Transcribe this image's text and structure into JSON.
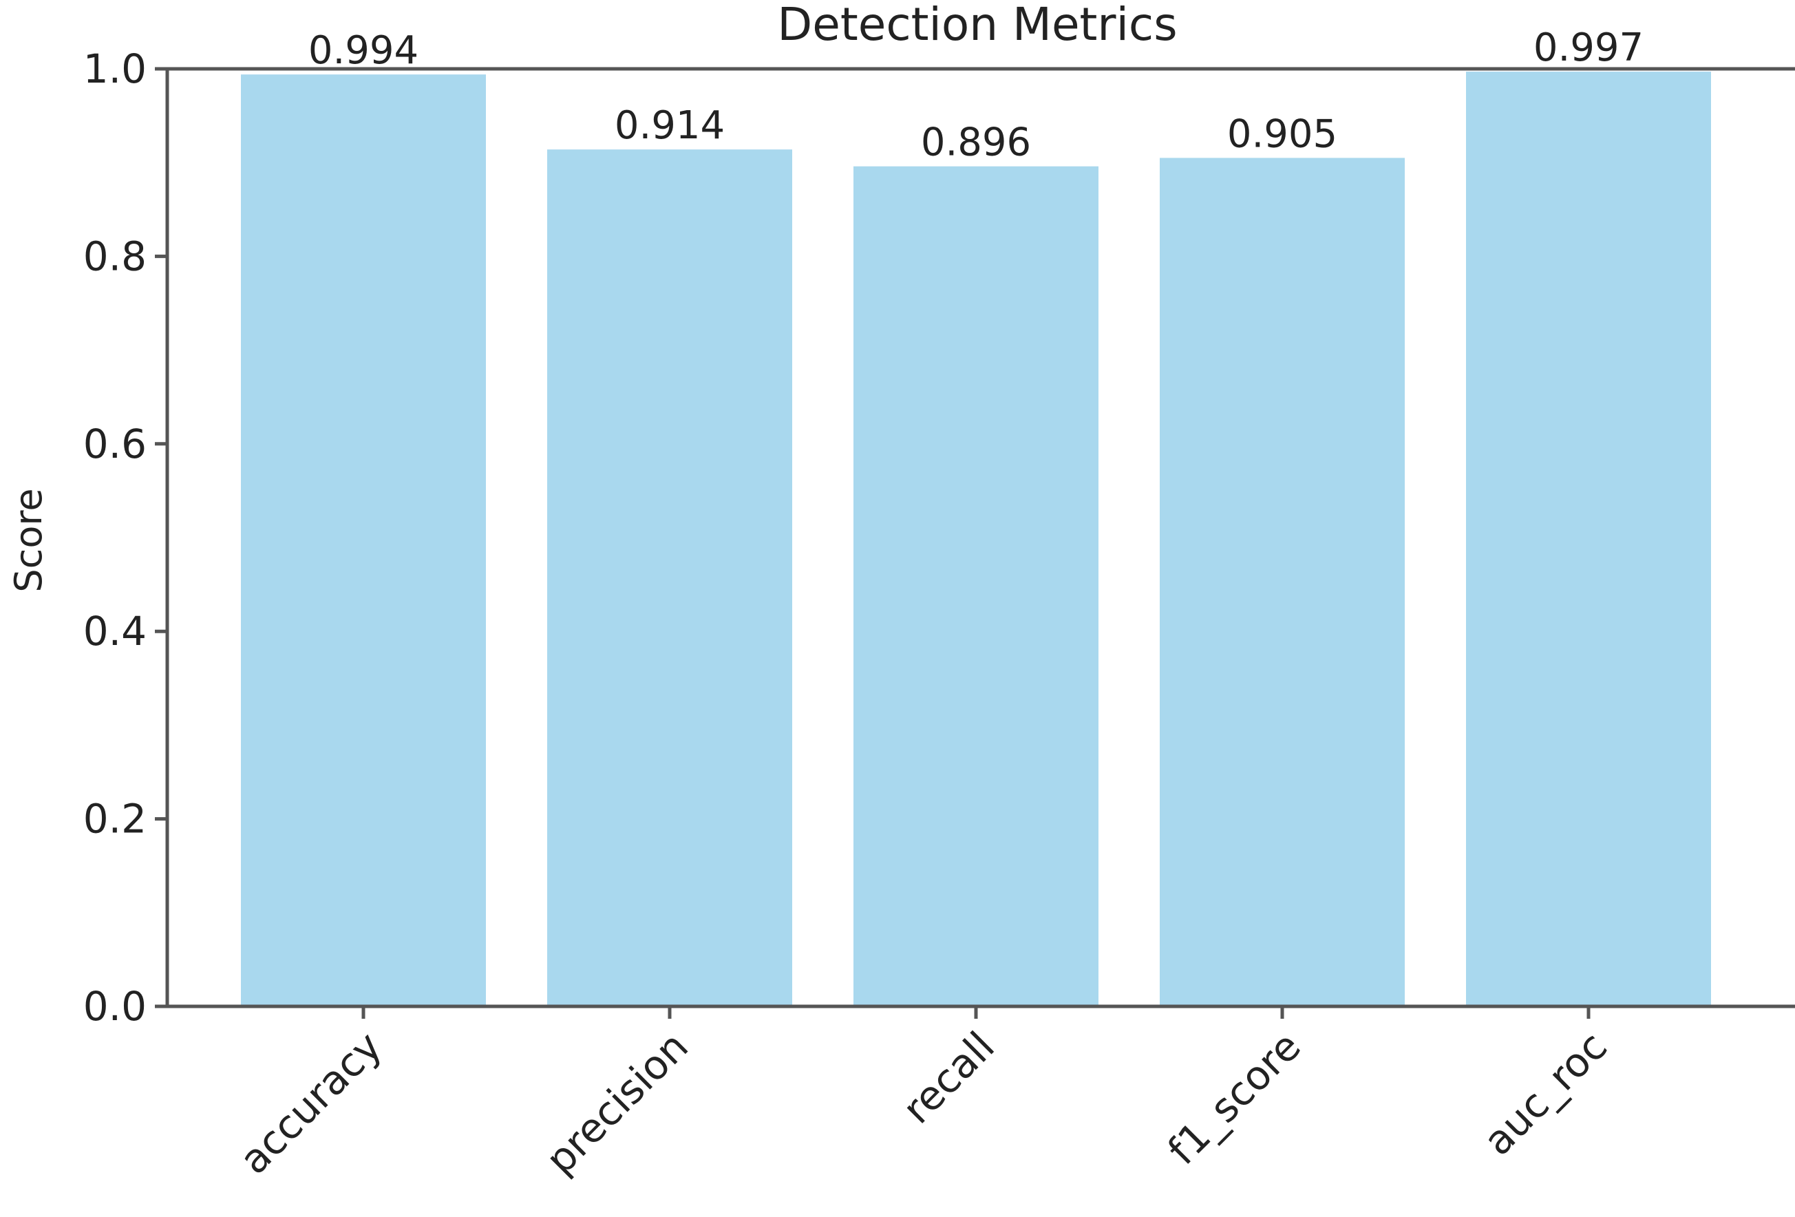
{
  "chart_data": {
    "type": "bar",
    "title": "Detection Metrics",
    "xlabel": "",
    "ylabel": "Score",
    "ylim": [
      0,
      1.0
    ],
    "yticks": [
      "0.0",
      "0.2",
      "0.4",
      "0.6",
      "0.8",
      "1.0"
    ],
    "categories": [
      "accuracy",
      "precision",
      "recall",
      "f1_score",
      "auc_roc"
    ],
    "values": [
      0.994,
      0.914,
      0.896,
      0.905,
      0.997
    ],
    "value_labels": [
      "0.994",
      "0.914",
      "0.896",
      "0.905",
      "0.997"
    ],
    "bar_color": "#a9d8ee",
    "axis_color": "#555555",
    "grid": false,
    "legend": "none",
    "xtick_rotation": 45
  }
}
